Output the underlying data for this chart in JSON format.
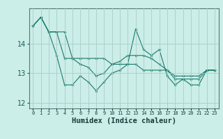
{
  "xlabel": "Humidex (Indice chaleur)",
  "background_color": "#cceee8",
  "grid_color": "#aacccc",
  "line_color": "#1a7a6a",
  "x_values": [
    0,
    1,
    2,
    3,
    4,
    5,
    6,
    7,
    8,
    9,
    10,
    11,
    12,
    13,
    14,
    15,
    16,
    17,
    18,
    19,
    20,
    21,
    22,
    23
  ],
  "series1": [
    14.6,
    14.9,
    14.4,
    13.6,
    12.6,
    12.6,
    12.9,
    12.7,
    12.4,
    12.7,
    13.0,
    13.1,
    13.3,
    14.5,
    13.8,
    13.6,
    13.8,
    12.9,
    12.6,
    12.8,
    12.6,
    12.6,
    13.1,
    13.1
  ],
  "series2": [
    14.6,
    14.9,
    14.4,
    14.4,
    14.4,
    13.5,
    13.5,
    13.5,
    13.5,
    13.5,
    13.3,
    13.3,
    13.3,
    13.3,
    13.1,
    13.1,
    13.1,
    13.1,
    12.9,
    12.9,
    12.9,
    12.9,
    13.1,
    13.1
  ],
  "series3": [
    14.6,
    14.9,
    14.4,
    14.4,
    13.5,
    13.5,
    13.3,
    13.2,
    12.9,
    13.0,
    13.3,
    13.4,
    13.6,
    13.6,
    13.6,
    13.5,
    13.3,
    13.1,
    12.8,
    12.8,
    12.8,
    12.8,
    13.1,
    13.1
  ],
  "ylim": [
    11.8,
    15.2
  ],
  "yticks": [
    12,
    13,
    14
  ],
  "xlim": [
    -0.5,
    23.5
  ],
  "xtick_fontsize": 5.0,
  "ytick_fontsize": 7.0,
  "xlabel_fontsize": 7.5
}
